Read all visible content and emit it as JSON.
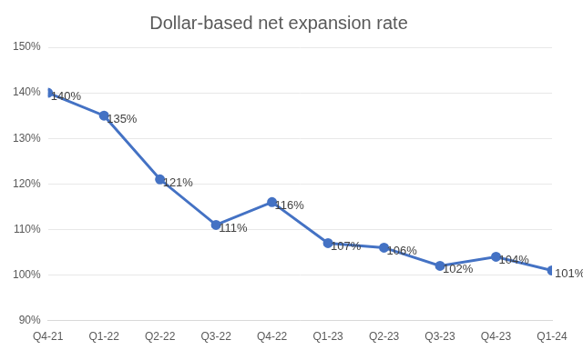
{
  "chart_data": {
    "type": "line",
    "title": "Dollar-based net expansion rate",
    "categories": [
      "Q4-21",
      "Q1-22",
      "Q2-22",
      "Q3-22",
      "Q4-22",
      "Q1-23",
      "Q2-23",
      "Q3-23",
      "Q4-23",
      "Q1-24"
    ],
    "values": [
      140,
      135,
      121,
      111,
      116,
      107,
      106,
      102,
      104,
      101
    ],
    "value_labels": [
      "140%",
      "135%",
      "121%",
      "111%",
      "116%",
      "107%",
      "106%",
      "102%",
      "104%",
      "101%"
    ],
    "color": "#4472c4",
    "ylim": [
      90,
      150
    ],
    "yticks": [
      {
        "value": 90,
        "label": "90%"
      },
      {
        "value": 100,
        "label": "100%"
      },
      {
        "value": 110,
        "label": "110%"
      },
      {
        "value": 120,
        "label": "120%"
      },
      {
        "value": 130,
        "label": "130%"
      },
      {
        "value": 140,
        "label": "140%"
      },
      {
        "value": 150,
        "label": "150%"
      }
    ],
    "grid": true,
    "data_labels": true,
    "marker": "circle",
    "line_style": "solid"
  }
}
